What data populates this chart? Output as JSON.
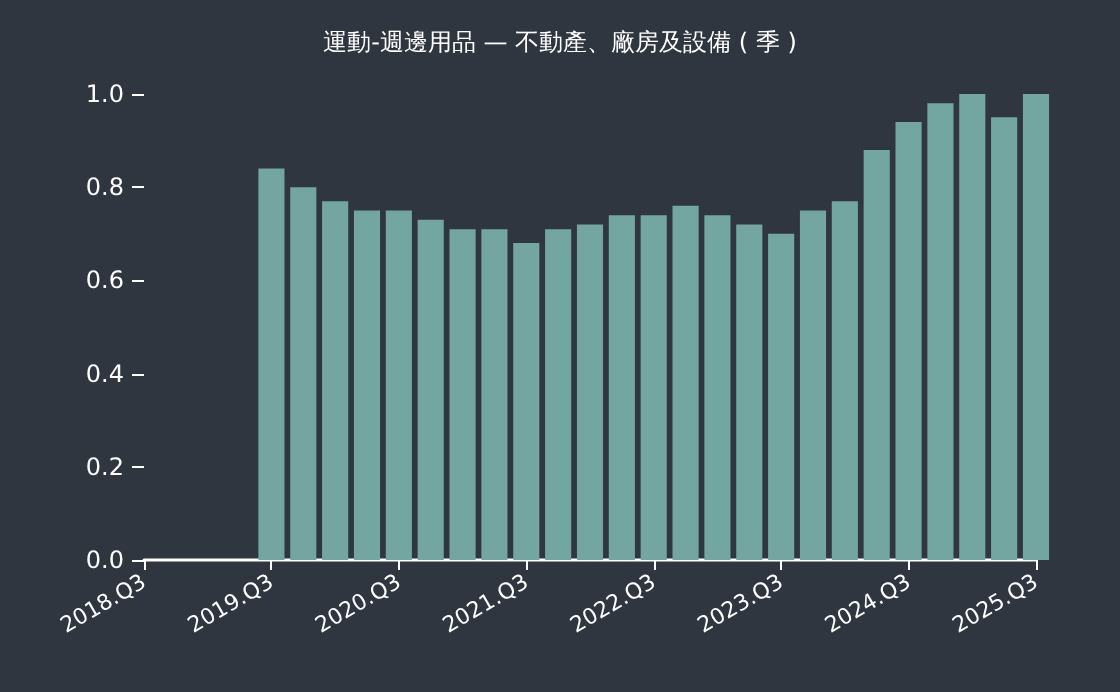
{
  "chart_data": {
    "type": "bar",
    "title": "運動-週邊用品 — 不動產、廠房及設備 ( 季 )",
    "categories": [
      "2018.Q3",
      null,
      null,
      null,
      "2019.Q3",
      null,
      null,
      null,
      "2020.Q3",
      null,
      null,
      null,
      "2021.Q3",
      null,
      null,
      null,
      "2022.Q3",
      null,
      null,
      null,
      "2023.Q3",
      null,
      null,
      null,
      "2024.Q3",
      null,
      null,
      null,
      "2025.Q3"
    ],
    "values": [
      null,
      null,
      null,
      null,
      0.84,
      0.8,
      0.77,
      0.75,
      0.75,
      0.73,
      0.71,
      0.71,
      0.68,
      0.71,
      0.72,
      0.74,
      0.74,
      0.76,
      0.74,
      0.72,
      0.7,
      0.75,
      0.77,
      0.88,
      0.94,
      0.98,
      1.0,
      0.95,
      1.0
    ],
    "color": "#73a6a0",
    "ylim": [
      0,
      1
    ],
    "yticks": [
      {
        "value": 0,
        "label": "0.0"
      },
      {
        "value": 0.2,
        "label": "0.2"
      },
      {
        "value": 0.4,
        "label": "0.4"
      },
      {
        "value": 0.6,
        "label": "0.6"
      },
      {
        "value": 0.8,
        "label": "0.8"
      },
      {
        "value": 1,
        "label": "1.0"
      }
    ],
    "grid": false
  }
}
